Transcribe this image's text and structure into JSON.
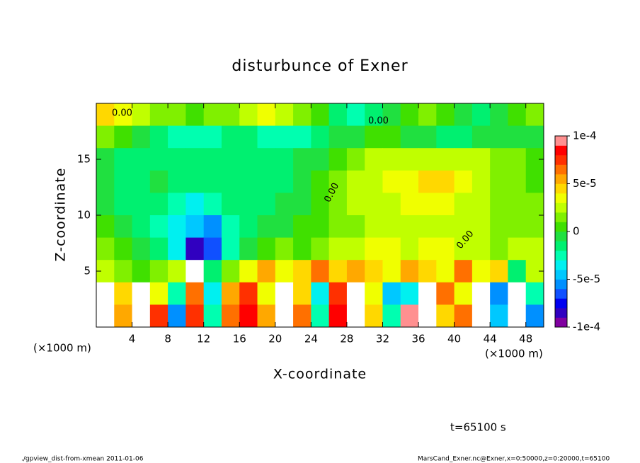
{
  "chart_data": {
    "type": "heatmap",
    "title": "disturbunce of Exner",
    "x_label": "X-coordinate",
    "y_label": "Z-coordinate",
    "x_unit": "(×1000 m)",
    "y_unit": "(×1000 m)",
    "xlim": [
      0,
      50
    ],
    "ylim": [
      0,
      20
    ],
    "xticks": [
      4,
      8,
      12,
      16,
      20,
      24,
      28,
      32,
      36,
      40,
      44,
      48
    ],
    "yticks": [
      5,
      10,
      15
    ],
    "x": [
      1,
      3,
      5,
      7,
      9,
      11,
      13,
      15,
      17,
      19,
      21,
      23,
      25,
      27,
      29,
      31,
      33,
      35,
      37,
      39,
      41,
      43,
      45,
      47,
      49
    ],
    "y": [
      19,
      17,
      15,
      13,
      11,
      9,
      7,
      5,
      3,
      1
    ],
    "values": [
      [
        4e-05,
        3e-05,
        2e-05,
        1e-05,
        1e-05,
        0,
        1e-05,
        1e-05,
        2e-05,
        3e-05,
        2e-05,
        1e-05,
        0,
        -2e-05,
        -3e-05,
        -2e-05,
        -1e-05,
        0,
        1e-05,
        0,
        -1e-05,
        -2e-05,
        -1e-05,
        0,
        1e-05
      ],
      [
        1e-05,
        0,
        -1e-05,
        -2e-05,
        -3e-05,
        -3e-05,
        -3e-05,
        -2e-05,
        -2e-05,
        -3e-05,
        -3e-05,
        -3e-05,
        -2e-05,
        -1e-05,
        -1e-05,
        0,
        0,
        -1e-05,
        -1e-05,
        -2e-05,
        -2e-05,
        -1e-05,
        -1e-05,
        -1e-05,
        -1e-05
      ],
      [
        -1e-05,
        -2e-05,
        -2e-05,
        -2e-05,
        -2e-05,
        -2e-05,
        -2e-05,
        -2e-05,
        -2e-05,
        -2e-05,
        -2e-05,
        -1e-05,
        -1e-05,
        0,
        1e-05,
        2e-05,
        2e-05,
        2e-05,
        2e-05,
        2e-05,
        2e-05,
        2e-05,
        1e-05,
        1e-05,
        0
      ],
      [
        -1e-05,
        -2e-05,
        -2e-05,
        -1e-05,
        -2e-05,
        -2e-05,
        -2e-05,
        -2e-05,
        -2e-05,
        -2e-05,
        -2e-05,
        -1e-05,
        0,
        1e-05,
        2e-05,
        2e-05,
        3e-05,
        3e-05,
        4e-05,
        4e-05,
        3e-05,
        2e-05,
        1e-05,
        1e-05,
        0
      ],
      [
        -1e-05,
        -2e-05,
        -2e-05,
        -2e-05,
        -3e-05,
        -4e-05,
        -3e-05,
        -2e-05,
        -2e-05,
        -2e-05,
        -1e-05,
        -1e-05,
        0,
        1e-05,
        2e-05,
        2e-05,
        2e-05,
        3e-05,
        3e-05,
        3e-05,
        2e-05,
        2e-05,
        1e-05,
        1e-05,
        1e-05
      ],
      [
        0,
        -1e-05,
        -2e-05,
        -3e-05,
        -4e-05,
        -5e-05,
        -6e-05,
        -3e-05,
        -2e-05,
        -1e-05,
        -1e-05,
        0,
        0,
        1e-05,
        1e-05,
        2e-05,
        2e-05,
        2e-05,
        2e-05,
        2e-05,
        2e-05,
        2e-05,
        1e-05,
        1e-05,
        1e-05
      ],
      [
        1e-05,
        0,
        -1e-05,
        -2e-05,
        -4e-05,
        -8e-05,
        -7e-05,
        -3e-05,
        -1e-05,
        0,
        1e-05,
        0,
        1e-05,
        2e-05,
        2e-05,
        3e-05,
        3e-05,
        2e-05,
        3e-05,
        3e-05,
        2e-05,
        2e-05,
        1e-05,
        2e-05,
        2e-05
      ],
      [
        2e-05,
        1e-05,
        0,
        1e-05,
        2e-05,
        0.00012,
        -2e-05,
        1e-05,
        3e-05,
        5e-05,
        3e-05,
        4e-05,
        6e-05,
        4e-05,
        5e-05,
        4e-05,
        3e-05,
        5e-05,
        4e-05,
        3e-05,
        6e-05,
        3e-05,
        4e-05,
        -2e-05,
        2e-05
      ],
      [
        0.00012,
        4e-05,
        0.00015,
        3e-05,
        -3e-05,
        6e-05,
        -4e-05,
        5e-05,
        7e-05,
        3e-05,
        0.00015,
        4e-05,
        -4e-05,
        7e-05,
        0.00012,
        3e-05,
        -5e-05,
        -4e-05,
        0.00015,
        6e-05,
        3e-05,
        0.00015,
        -6e-05,
        0.00015,
        -3e-05
      ],
      [
        0.00011,
        5e-05,
        0.00015,
        7e-05,
        -6e-05,
        7e-05,
        -3e-05,
        6e-05,
        8e-05,
        5e-05,
        0.00015,
        6e-05,
        -3e-05,
        8e-05,
        0.00012,
        4e-05,
        -3e-05,
        9e-05,
        0.00015,
        4e-05,
        6e-05,
        0.00015,
        -5e-05,
        0.00015,
        -6e-05
      ]
    ],
    "clim": [
      -0.0001,
      0.0001
    ],
    "colors": [
      "#8000a0",
      "#3000c0",
      "#0000f0",
      "#1050ff",
      "#0090ff",
      "#00c8ff",
      "#00f0f0",
      "#00ffb0",
      "#00f070",
      "#20e040",
      "#40e000",
      "#80f000",
      "#c0ff00",
      "#f0ff00",
      "#ffd800",
      "#ffa800",
      "#ff7000",
      "#ff3000",
      "#ff0000",
      "#ff9090"
    ],
    "over_color": "#ffffff",
    "cbar_ticks": [
      {
        "value": 0.0001,
        "label": "1e-4"
      },
      {
        "value": 5e-05,
        "label": "5e-5"
      },
      0,
      {
        "value": -5e-05,
        "label": "-5e-5"
      },
      {
        "value": -0.0001,
        "label": "-1e-4"
      }
    ],
    "annotations": [
      "0.00",
      "0.00",
      "0.00",
      "0.00"
    ],
    "time_label": "t=65100 s",
    "footer_left": "./gpview_dist-from-xmean  2011-01-06",
    "footer_right": "MarsCand_Exner.nc@Exner,x=0:50000,z=0:20000,t=65100"
  }
}
